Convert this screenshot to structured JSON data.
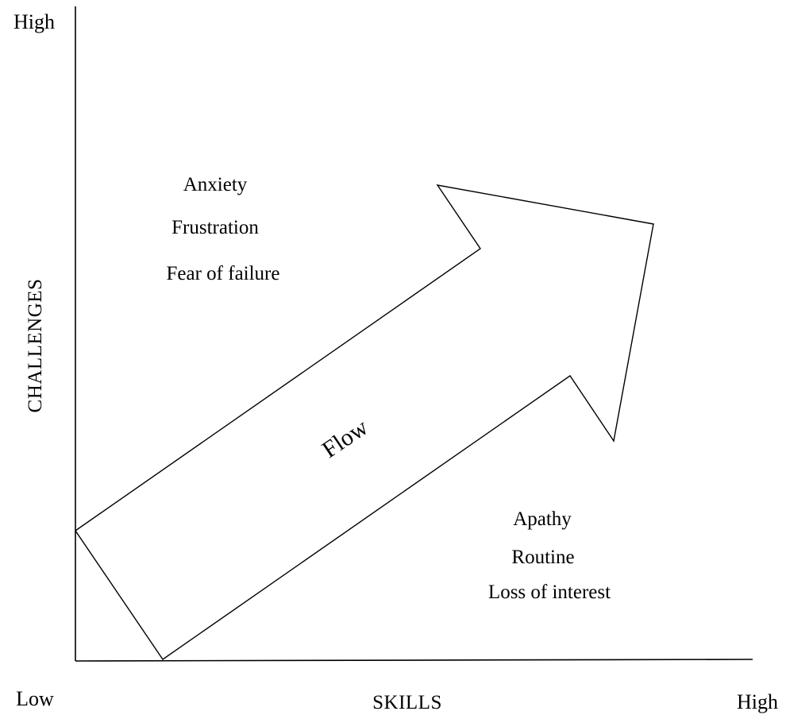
{
  "axes": {
    "y_top_label": "High",
    "y_title": "CHALLENGES",
    "x_left_label": "Low",
    "x_title": "SKILLS",
    "x_right_label": "High"
  },
  "regions": {
    "upper": [
      "Anxiety",
      "Frustration",
      "Fear of failure"
    ],
    "lower": [
      "Apathy",
      "Routine",
      "Loss of interest"
    ]
  },
  "flow": {
    "label": "Flow"
  },
  "colors": {
    "ink": "#000000",
    "background": "#ffffff"
  }
}
